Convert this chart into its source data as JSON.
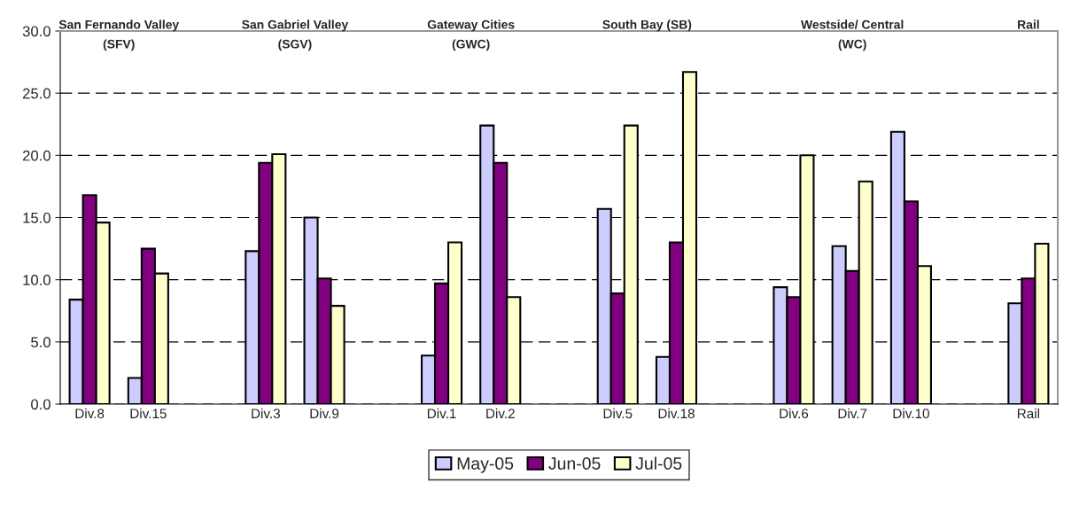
{
  "chart_data": {
    "type": "bar",
    "categories": [
      "Div.8",
      "Div.15",
      null,
      "Div.3",
      "Div.9",
      null,
      "Div.1",
      "Div.2",
      null,
      "Div.5",
      "Div.18",
      null,
      "Div.6",
      "Div.7",
      "Div.10",
      null,
      "Rail"
    ],
    "series": [
      {
        "name": "May-05",
        "color": "#ccccff",
        "values": [
          8.4,
          2.1,
          null,
          12.3,
          15.0,
          null,
          3.9,
          22.4,
          null,
          15.7,
          3.8,
          null,
          9.4,
          12.7,
          21.9,
          null,
          8.1
        ]
      },
      {
        "name": "Jun-05",
        "color": "#800080",
        "values": [
          16.8,
          12.5,
          null,
          19.4,
          10.1,
          null,
          9.7,
          19.4,
          null,
          8.9,
          13.0,
          null,
          8.6,
          10.7,
          16.3,
          null,
          10.1
        ]
      },
      {
        "name": "Jul-05",
        "color": "#ffffcc",
        "values": [
          14.6,
          10.5,
          null,
          20.1,
          7.9,
          null,
          13.0,
          8.6,
          null,
          22.4,
          26.7,
          null,
          20.0,
          17.9,
          11.1,
          null,
          12.9
        ]
      }
    ],
    "annotations": [
      "San Fernando Valley\n(SFV)",
      "San Gabriel Valley\n(SGV)",
      "Gateway Cities\n(GWC)",
      "South Bay (SB)",
      "Westside/ Central\n(WC)",
      "Rail"
    ],
    "ylim": [
      0,
      30
    ],
    "yticks": [
      {
        "value": 0,
        "label": "0.0"
      },
      {
        "value": 5,
        "label": "5.0"
      },
      {
        "value": 10,
        "label": "10.0"
      },
      {
        "value": 15,
        "label": "15.0"
      },
      {
        "value": 20,
        "label": "20.0"
      },
      {
        "value": 25,
        "label": "25.0"
      },
      {
        "value": 30,
        "label": "30.0"
      }
    ],
    "grid": "y",
    "legend": "bottom"
  }
}
